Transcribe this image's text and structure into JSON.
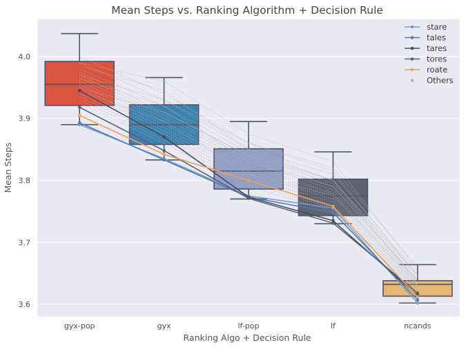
{
  "chart_data": {
    "type": "box",
    "title": "Mean Steps vs. Ranking Algorithm + Decision Rule",
    "xlabel": "Ranking Algo + Decision Rule",
    "ylabel": "Mean Steps",
    "categories": [
      "gyx-pop",
      "gyx",
      "lf-pop",
      "lf",
      "ncands"
    ],
    "ylim": [
      3.58,
      4.06
    ],
    "yticks": [
      3.6,
      3.7,
      3.8,
      3.9,
      4.0
    ],
    "ytick_labels": [
      "3.6",
      "3.7",
      "3.8",
      "3.9",
      "4.0"
    ],
    "grid": true,
    "legend_position": "top-right",
    "boxes": [
      {
        "category": "gyx-pop",
        "whisker_low": 3.89,
        "q1": 3.921,
        "median": 3.955,
        "q3": 3.992,
        "whisker_high": 4.037,
        "color": "#d9543e"
      },
      {
        "category": "gyx",
        "whisker_low": 3.833,
        "q1": 3.858,
        "median": 3.89,
        "q3": 3.922,
        "whisker_high": 3.966,
        "color": "#3d82ae"
      },
      {
        "category": "lf-pop",
        "whisker_low": 3.77,
        "q1": 3.786,
        "median": 3.815,
        "q3": 3.851,
        "whisker_high": 3.895,
        "color": "#929ec6"
      },
      {
        "category": "lf",
        "whisker_low": 3.73,
        "q1": 3.743,
        "median": 3.775,
        "q3": 3.802,
        "whisker_high": 3.846,
        "color": "#5f6370"
      },
      {
        "category": "ncands",
        "whisker_low": 3.602,
        "q1": 3.613,
        "median": 3.632,
        "q3": 3.638,
        "whisker_high": 3.664,
        "color": "#e6b675"
      }
    ],
    "series": [
      {
        "name": "stare",
        "values": [
          3.89,
          3.835,
          3.775,
          3.755,
          3.602
        ],
        "color": "#7a9acb"
      },
      {
        "name": "tales",
        "values": [
          3.893,
          3.833,
          3.773,
          3.748,
          3.607
        ],
        "color": "#4d7eb5"
      },
      {
        "name": "tares",
        "values": [
          3.945,
          3.87,
          3.773,
          3.735,
          3.614
        ],
        "color": "#444c63"
      },
      {
        "name": "tores",
        "values": [
          3.918,
          3.848,
          3.771,
          3.731,
          3.618
        ],
        "color": "#5a6175"
      },
      {
        "name": "roate",
        "values": [
          3.905,
          3.842,
          3.8,
          3.758,
          3.612
        ],
        "color": "#eaa15c"
      }
    ],
    "others_label": "Others",
    "others_color": "#b3b3b3",
    "others": [
      [
        4.0,
        3.94,
        3.86,
        3.82,
        3.66
      ],
      [
        3.99,
        3.93,
        3.85,
        3.81,
        3.65
      ],
      [
        3.98,
        3.92,
        3.845,
        3.8,
        3.645
      ],
      [
        3.975,
        3.91,
        3.84,
        3.795,
        3.64
      ],
      [
        3.97,
        3.905,
        3.835,
        3.79,
        3.638
      ],
      [
        3.965,
        3.9,
        3.83,
        3.785,
        3.636
      ],
      [
        3.96,
        3.895,
        3.825,
        3.78,
        3.634
      ],
      [
        3.955,
        3.89,
        3.82,
        3.778,
        3.632
      ],
      [
        3.95,
        3.885,
        3.815,
        3.775,
        3.63
      ],
      [
        3.945,
        3.88,
        3.81,
        3.77,
        3.628
      ],
      [
        3.94,
        3.875,
        3.805,
        3.765,
        3.626
      ],
      [
        3.935,
        3.87,
        3.8,
        3.76,
        3.624
      ],
      [
        3.93,
        3.865,
        3.795,
        3.755,
        3.622
      ],
      [
        3.925,
        3.86,
        3.79,
        3.75,
        3.62
      ],
      [
        3.985,
        3.945,
        3.85,
        3.8,
        3.648
      ],
      [
        3.965,
        3.92,
        3.83,
        3.79,
        3.64
      ],
      [
        3.945,
        3.895,
        3.81,
        3.775,
        3.63
      ],
      [
        3.99,
        3.96,
        3.875,
        3.83,
        3.655
      ],
      [
        3.97,
        3.93,
        3.86,
        3.815,
        3.645
      ],
      [
        3.95,
        3.91,
        3.84,
        3.8,
        3.635
      ]
    ]
  }
}
